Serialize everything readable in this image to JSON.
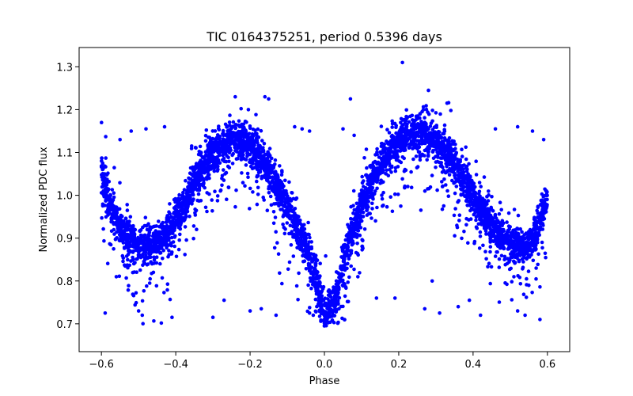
{
  "chart_data": {
    "type": "scatter",
    "title": "TIC 0164375251, period 0.5396 days",
    "xlabel": "Phase",
    "ylabel": "Normalized PDC flux",
    "xlim": [
      -0.66,
      0.66
    ],
    "ylim": [
      0.635,
      1.345
    ],
    "x_ticks": [
      {
        "value": -0.6,
        "label": "−0.6"
      },
      {
        "value": -0.4,
        "label": "−0.4"
      },
      {
        "value": -0.2,
        "label": "−0.2"
      },
      {
        "value": 0.0,
        "label": "0.0"
      },
      {
        "value": 0.2,
        "label": "0.2"
      },
      {
        "value": 0.4,
        "label": "0.4"
      },
      {
        "value": 0.6,
        "label": "0.6"
      }
    ],
    "y_ticks": [
      {
        "value": 0.7,
        "label": "0.7"
      },
      {
        "value": 0.8,
        "label": "0.8"
      },
      {
        "value": 0.9,
        "label": "0.9"
      },
      {
        "value": 1.0,
        "label": "1.0"
      },
      {
        "value": 1.1,
        "label": "1.1"
      },
      {
        "value": 1.2,
        "label": "1.2"
      },
      {
        "value": 1.3,
        "label": "1.3"
      }
    ],
    "grid": false,
    "marker_color": "#0000ff",
    "series": [
      {
        "mean_curve": [
          [
            -0.6,
            1.07
          ],
          [
            -0.58,
            0.98
          ],
          [
            -0.56,
            0.94
          ],
          [
            -0.54,
            0.91
          ],
          [
            -0.5,
            0.885
          ],
          [
            -0.46,
            0.885
          ],
          [
            -0.42,
            0.91
          ],
          [
            -0.38,
            0.97
          ],
          [
            -0.34,
            1.05
          ],
          [
            -0.3,
            1.1
          ],
          [
            -0.26,
            1.125
          ],
          [
            -0.22,
            1.13
          ],
          [
            -0.18,
            1.1
          ],
          [
            -0.14,
            1.05
          ],
          [
            -0.1,
            0.98
          ],
          [
            -0.06,
            0.9
          ],
          [
            -0.03,
            0.83
          ],
          [
            0.0,
            0.72
          ],
          [
            0.03,
            0.76
          ],
          [
            0.06,
            0.88
          ],
          [
            0.1,
            0.98
          ],
          [
            0.14,
            1.06
          ],
          [
            0.18,
            1.11
          ],
          [
            0.22,
            1.14
          ],
          [
            0.26,
            1.15
          ],
          [
            0.3,
            1.13
          ],
          [
            0.34,
            1.09
          ],
          [
            0.38,
            1.03
          ],
          [
            0.42,
            0.97
          ],
          [
            0.46,
            0.92
          ],
          [
            0.5,
            0.89
          ],
          [
            0.54,
            0.88
          ],
          [
            0.57,
            0.91
          ],
          [
            0.6,
            1.0
          ]
        ],
        "band_halfwidth": 0.045,
        "outliers": [
          [
            0.21,
            1.31
          ],
          [
            0.28,
            1.245
          ],
          [
            -0.24,
            1.23
          ],
          [
            -0.16,
            1.23
          ],
          [
            -0.15,
            1.225
          ],
          [
            0.07,
            1.225
          ],
          [
            0.33,
            1.215
          ],
          [
            -0.59,
            0.725
          ],
          [
            -0.5,
            0.73
          ],
          [
            -0.49,
            0.72
          ],
          [
            -0.41,
            0.715
          ],
          [
            -0.3,
            0.715
          ],
          [
            -0.27,
            0.755
          ],
          [
            -0.2,
            0.73
          ],
          [
            -0.17,
            0.735
          ],
          [
            -0.13,
            0.72
          ],
          [
            -0.04,
            0.725
          ],
          [
            -0.03,
            0.72
          ],
          [
            0.14,
            0.76
          ],
          [
            0.19,
            0.76
          ],
          [
            0.27,
            0.735
          ],
          [
            0.31,
            0.725
          ],
          [
            0.36,
            0.74
          ],
          [
            0.39,
            0.755
          ],
          [
            0.42,
            0.72
          ],
          [
            0.52,
            0.73
          ],
          [
            0.54,
            0.72
          ],
          [
            0.58,
            0.71
          ],
          [
            -0.46,
            0.82
          ],
          [
            -0.47,
            0.795
          ],
          [
            -0.56,
            0.81
          ],
          [
            0.51,
            0.81
          ],
          [
            0.55,
            0.79
          ],
          [
            0.09,
            0.81
          ],
          [
            0.29,
            0.8
          ],
          [
            -0.06,
            1.155
          ],
          [
            -0.08,
            1.16
          ],
          [
            -0.04,
            1.15
          ],
          [
            0.05,
            1.155
          ],
          [
            0.08,
            1.14
          ],
          [
            -0.52,
            1.15
          ],
          [
            -0.48,
            1.155
          ],
          [
            0.46,
            1.155
          ],
          [
            0.52,
            1.16
          ],
          [
            0.56,
            1.15
          ],
          [
            -0.43,
            1.16
          ],
          [
            -0.55,
            1.13
          ],
          [
            0.59,
            1.13
          ]
        ]
      }
    ]
  }
}
